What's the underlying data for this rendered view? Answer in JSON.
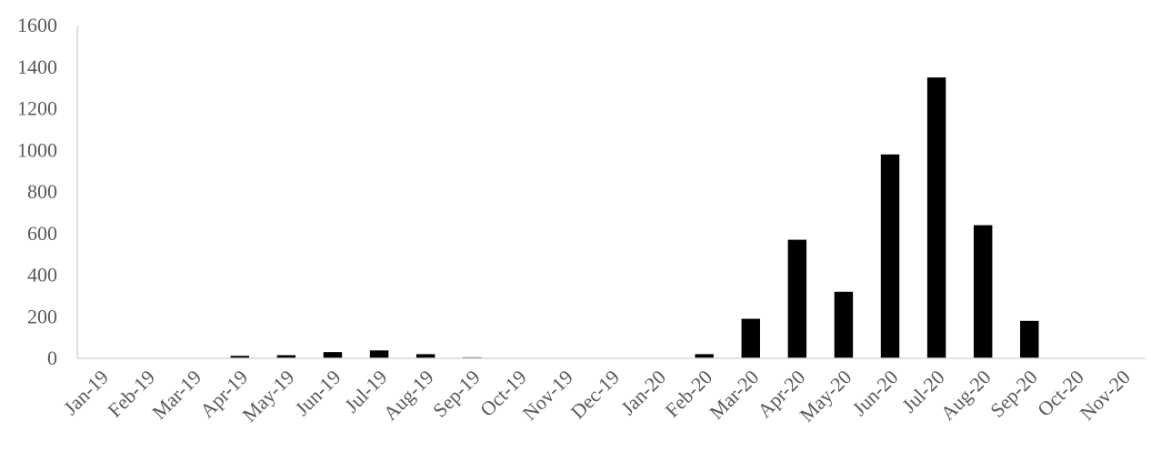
{
  "chart_data": {
    "type": "bar",
    "categories": [
      "Jan-19",
      "Feb-19",
      "Mar-19",
      "Apr-19",
      "May-19",
      "Jun-19",
      "Jul-19",
      "Aug-19",
      "Sep-19",
      "Oct-19",
      "Nov-19",
      "Dec-19",
      "Jan-20",
      "Feb-20",
      "Mar-20",
      "Apr-20",
      "May-20",
      "Jun-20",
      "Jul-20",
      "Aug-20",
      "Sep-20",
      "Oct-20",
      "Nov-20"
    ],
    "values": [
      0,
      0,
      0,
      12,
      15,
      30,
      38,
      20,
      5,
      0,
      0,
      0,
      0,
      20,
      190,
      570,
      320,
      980,
      1350,
      640,
      180,
      0,
      0
    ],
    "ylim": [
      0,
      1600
    ],
    "yticks": [
      0,
      200,
      400,
      600,
      800,
      1000,
      1200,
      1400,
      1600
    ],
    "bar_color": "#000000",
    "grid": false,
    "legend": "none"
  }
}
